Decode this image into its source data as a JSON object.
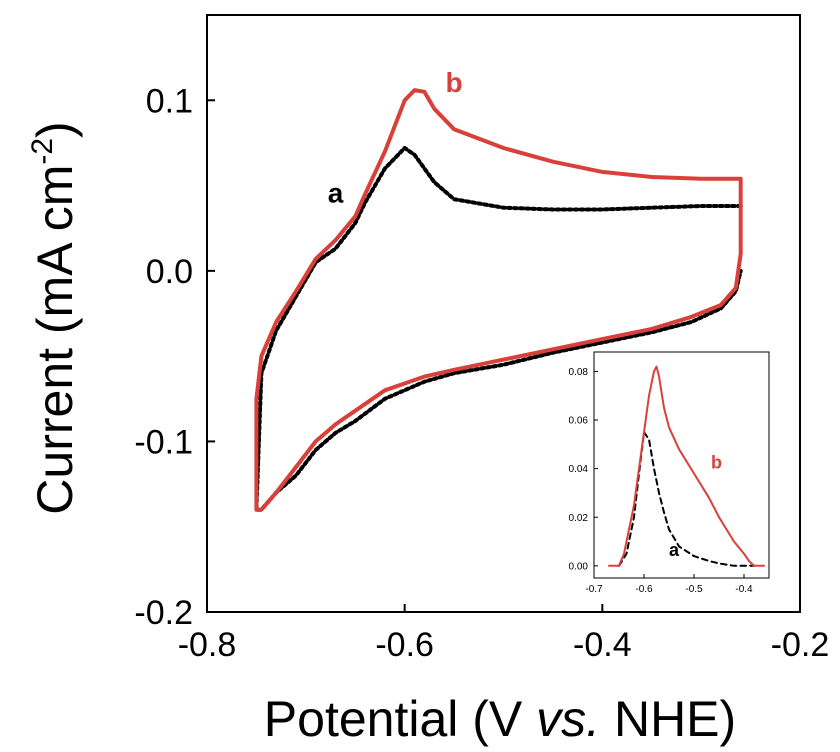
{
  "chart_data": [
    {
      "type": "line",
      "xlabel": "Potential (V vs. NHE)",
      "ylabel": "Current (mA cm-2)",
      "xlim": [
        -0.8,
        -0.2
      ],
      "ylim": [
        -0.2,
        0.15
      ],
      "x_ticks": [
        "-0.8",
        "-0.6",
        "-0.4",
        "-0.2"
      ],
      "y_ticks": [
        "-0.2",
        "-0.1",
        "0.0",
        "0.1"
      ],
      "grid": false,
      "legend": "none",
      "series": [
        {
          "name": "a",
          "color": "#000000",
          "style": "dotted",
          "x": [
            -0.26,
            -0.3,
            -0.35,
            -0.4,
            -0.45,
            -0.5,
            -0.55,
            -0.57,
            -0.59,
            -0.6,
            -0.62,
            -0.64,
            -0.65,
            -0.67,
            -0.69,
            -0.71,
            -0.73,
            -0.745,
            -0.75,
            -0.745,
            -0.73,
            -0.71,
            -0.69,
            -0.67,
            -0.65,
            -0.62,
            -0.58,
            -0.55,
            -0.5,
            -0.45,
            -0.4,
            -0.35,
            -0.31,
            -0.28,
            -0.265,
            -0.26
          ],
          "y": [
            0.038,
            0.038,
            0.037,
            0.036,
            0.036,
            0.037,
            0.042,
            0.052,
            0.068,
            0.072,
            0.06,
            0.04,
            0.028,
            0.013,
            0.005,
            -0.015,
            -0.035,
            -0.06,
            -0.14,
            -0.14,
            -0.13,
            -0.12,
            -0.105,
            -0.095,
            -0.088,
            -0.075,
            -0.065,
            -0.06,
            -0.055,
            -0.048,
            -0.042,
            -0.036,
            -0.03,
            -0.022,
            -0.012,
            0.0
          ]
        },
        {
          "name": "b",
          "color": "#d9403a",
          "style": "solid",
          "x": [
            -0.26,
            -0.3,
            -0.35,
            -0.4,
            -0.45,
            -0.5,
            -0.55,
            -0.57,
            -0.58,
            -0.59,
            -0.6,
            -0.62,
            -0.64,
            -0.65,
            -0.67,
            -0.69,
            -0.71,
            -0.73,
            -0.745,
            -0.75,
            -0.75,
            -0.745,
            -0.73,
            -0.71,
            -0.69,
            -0.67,
            -0.65,
            -0.62,
            -0.58,
            -0.55,
            -0.5,
            -0.45,
            -0.4,
            -0.35,
            -0.31,
            -0.28,
            -0.265,
            -0.26,
            -0.26
          ],
          "y": [
            0.054,
            0.054,
            0.055,
            0.058,
            0.064,
            0.072,
            0.083,
            0.095,
            0.105,
            0.106,
            0.1,
            0.07,
            0.045,
            0.032,
            0.018,
            0.007,
            -0.012,
            -0.03,
            -0.05,
            -0.075,
            -0.14,
            -0.14,
            -0.13,
            -0.115,
            -0.1,
            -0.09,
            -0.082,
            -0.07,
            -0.062,
            -0.058,
            -0.052,
            -0.046,
            -0.04,
            -0.034,
            -0.027,
            -0.02,
            -0.01,
            0.01,
            0.054
          ]
        }
      ],
      "annotations": [
        {
          "text": "a",
          "x": -0.67,
          "y": 0.04,
          "color": "#000000"
        },
        {
          "text": "b",
          "x": -0.55,
          "y": 0.105,
          "color": "#d9403a"
        }
      ]
    },
    {
      "type": "line",
      "inset": true,
      "xlabel": "",
      "ylabel": "",
      "xlim": [
        -0.7,
        -0.35
      ],
      "ylim": [
        -0.005,
        0.088
      ],
      "x_ticks": [
        "-0.7",
        "-0.6",
        "-0.5",
        "-0.4"
      ],
      "y_ticks": [
        "0.00",
        "0.02",
        "0.04",
        "0.06",
        "0.08"
      ],
      "series": [
        {
          "name": "a",
          "color": "#000000",
          "style": "dashed",
          "x": [
            -0.65,
            -0.635,
            -0.62,
            -0.61,
            -0.6,
            -0.59,
            -0.58,
            -0.57,
            -0.56,
            -0.55,
            -0.53,
            -0.5,
            -0.47,
            -0.45,
            -0.42,
            -0.4,
            -0.38
          ],
          "y": [
            0.0,
            0.005,
            0.02,
            0.038,
            0.055,
            0.052,
            0.04,
            0.03,
            0.022,
            0.015,
            0.008,
            0.004,
            0.002,
            0.001,
            0.0,
            0.0,
            0.0
          ]
        },
        {
          "name": "b",
          "color": "#d9403a",
          "style": "solid",
          "x": [
            -0.67,
            -0.65,
            -0.64,
            -0.62,
            -0.61,
            -0.6,
            -0.59,
            -0.58,
            -0.575,
            -0.57,
            -0.56,
            -0.55,
            -0.53,
            -0.5,
            -0.47,
            -0.45,
            -0.42,
            -0.4,
            -0.39,
            -0.38,
            -0.36
          ],
          "y": [
            0.0,
            0.0,
            0.005,
            0.025,
            0.04,
            0.055,
            0.07,
            0.08,
            0.082,
            0.078,
            0.065,
            0.057,
            0.048,
            0.038,
            0.028,
            0.02,
            0.01,
            0.005,
            0.002,
            0.0,
            0.0
          ]
        }
      ],
      "annotations": [
        {
          "text": "a",
          "x": -0.54,
          "y": 0.004,
          "color": "#000000"
        },
        {
          "text": "b",
          "x": -0.455,
          "y": 0.04,
          "color": "#d9403a"
        }
      ]
    }
  ],
  "labels": {
    "ylabel_main": "Current (mA cm",
    "ylabel_sup": "-2",
    "ylabel_close": ")",
    "xlabel_pre": "Potential (V ",
    "xlabel_italic": "vs.",
    "xlabel_post": " NHE)"
  }
}
